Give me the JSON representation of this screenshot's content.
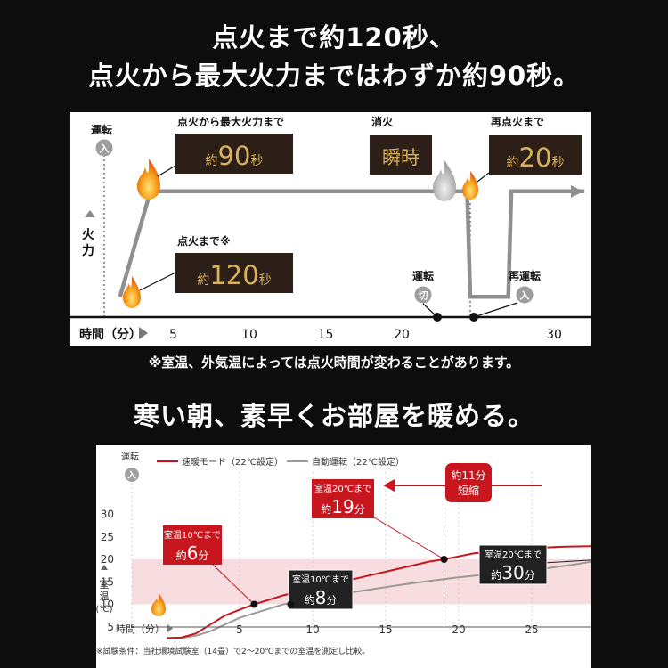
{
  "header": {
    "line1": "点火まで約120秒、",
    "line2": "点火から最大火力まではわずか約90秒。"
  },
  "section2": {
    "title": "寒い朝、素早くお部屋を暖める。"
  },
  "colors": {
    "background": "#0d0d0d",
    "red": "#c8161e",
    "gray": "#9a9a9a",
    "gold": "#d9b15a",
    "pink_band": "#f7dde0"
  },
  "chart_data": [
    {
      "type": "line",
      "xlabel": "時間（分）",
      "ylabel": "火力",
      "xticks": [
        5,
        10,
        15,
        20,
        30
      ],
      "xlim": [
        0,
        32
      ],
      "series": [
        {
          "x": [
            1.5,
            3.5,
            5.5,
            24.3,
            24.5,
            27.0,
            27.2,
            32.0
          ],
          "y": [
            0.1,
            0.9,
            0.9,
            0.9,
            0.1,
            0.1,
            0.9,
            0.9
          ]
        }
      ],
      "axis_labels": {
        "run": "運転",
        "on": "入",
        "off": "切"
      },
      "annotations": [
        {
          "label": "点火から最大火力まで",
          "pre": "約",
          "num": "90",
          "post": "秒"
        },
        {
          "label": "点火まで※",
          "pre": "約",
          "num": "120",
          "post": "秒"
        },
        {
          "label": "消火",
          "pre": "",
          "num": "瞬時",
          "post": ""
        },
        {
          "label": "再点火まで",
          "pre": "約",
          "num": "20",
          "post": "秒"
        },
        {
          "label": "運転",
          "circle": "切"
        },
        {
          "label": "再運転",
          "circle": "入"
        }
      ],
      "note": "※室温、外気温によっては点火時間が変わることがあります。"
    },
    {
      "type": "line",
      "xlabel": "時間（分）",
      "ylabel": "室温（℃）",
      "xticks": [
        5,
        10,
        15,
        20,
        25,
        30
      ],
      "yticks": [
        5,
        10,
        15,
        20,
        25,
        30
      ],
      "xlim": [
        0,
        33
      ],
      "ylim": [
        0,
        32
      ],
      "highlight_band": [
        10,
        20
      ],
      "series": [
        {
          "name": "速暖モード（22℃設定）",
          "color": "#c8161e",
          "x": [
            0,
            1,
            2,
            3,
            4,
            5,
            6,
            7,
            8,
            10,
            12,
            14,
            16,
            18,
            19,
            21,
            24,
            27,
            30,
            33
          ],
          "y": [
            2.5,
            2.6,
            3.5,
            5.5,
            7.5,
            8.8,
            10,
            11,
            12,
            13.5,
            15,
            16.5,
            18,
            19.5,
            20,
            21.3,
            22.3,
            22.8,
            23,
            23
          ]
        },
        {
          "name": "自動運転（22℃設定）",
          "color": "#9a9a9a",
          "x": [
            0,
            1,
            2,
            3,
            4,
            5,
            6,
            7,
            8,
            10,
            12,
            14,
            16,
            18,
            20,
            22,
            24,
            26,
            28,
            30,
            31,
            32,
            33
          ],
          "y": [
            2.5,
            2.5,
            3,
            4,
            5.5,
            7,
            8,
            9,
            10,
            11.2,
            12.3,
            13.3,
            14.3,
            15.2,
            16,
            16.7,
            17.3,
            18,
            18.9,
            20,
            20.7,
            21.3,
            21.7
          ]
        }
      ],
      "axis_labels": {
        "run": "運転",
        "on": "入"
      },
      "annotations": [
        {
          "label": "室温10℃まで",
          "pre": "約",
          "num": "6",
          "post": "分"
        },
        {
          "label": "室温10℃まで",
          "pre": "約",
          "num": "8",
          "post": "分"
        },
        {
          "label": "室温20℃まで",
          "pre": "約",
          "num": "19",
          "post": "分"
        },
        {
          "label": "室温20℃まで",
          "pre": "約",
          "num": "30",
          "post": "分"
        },
        {
          "label": "約11分",
          "label2": "短縮"
        }
      ],
      "note": "※試験条件：当社環境試験室（14畳）で2〜20℃までの室温を測定し比較。"
    }
  ]
}
